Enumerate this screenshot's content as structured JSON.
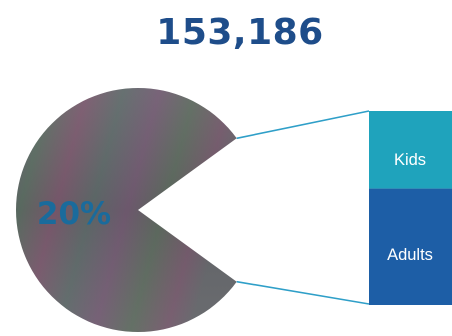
{
  "chart_data": {
    "type": "bar-of-pie",
    "total": "153,186",
    "pie": {
      "slices": [
        {
          "label": "20%",
          "value": 80,
          "color": "#6e5f6f"
        },
        {
          "label": "",
          "value": 20,
          "exploded": true
        }
      ]
    },
    "bar": {
      "segments": [
        {
          "label": "Kids",
          "value": 40,
          "color": "#1fa3bc"
        },
        {
          "label": "Adults",
          "value": 60,
          "color": "#1d5ea6"
        }
      ]
    },
    "colors": {
      "total_text": "#1e4d8a",
      "pct_text": "#1a6b9c",
      "segment_text": "#ffffff",
      "connector": "#2f9fc8"
    }
  }
}
